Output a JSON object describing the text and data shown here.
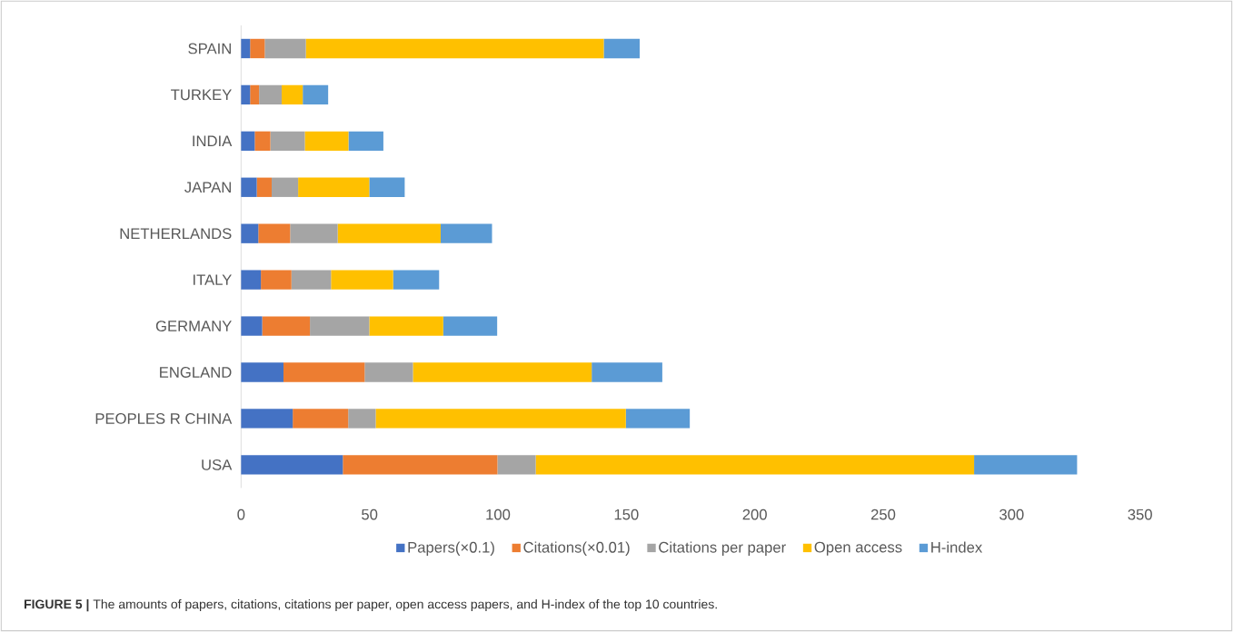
{
  "chart_data": {
    "type": "bar",
    "orientation": "horizontal",
    "stacked": true,
    "categories": [
      "SPAIN",
      "TURKEY",
      "INDIA",
      "JAPAN",
      "NETHERLANDS",
      "ITALY",
      "GERMANY",
      "ENGLAND",
      "PEOPLES R CHINA",
      "USA"
    ],
    "series": [
      {
        "name": "Papers(×0.1)",
        "color": "#4472c4",
        "values": [
          3.5,
          3.5,
          5.3,
          6.1,
          6.7,
          7.7,
          8.2,
          16.5,
          20.1,
          39.6
        ]
      },
      {
        "name": "Citations(×0.01)",
        "color": "#ed7d31",
        "values": [
          5.7,
          3.5,
          6.1,
          5.8,
          12.4,
          11.9,
          18.6,
          31.6,
          21.6,
          60.2
        ]
      },
      {
        "name": "Citations per paper",
        "color": "#a5a5a5",
        "values": [
          16,
          8.8,
          13.4,
          10.3,
          18.5,
          15.4,
          23.1,
          18.8,
          10.7,
          14.9
        ]
      },
      {
        "name": "Open access",
        "color": "#ffc000",
        "values": [
          116,
          8.2,
          17,
          27.7,
          40.1,
          24.2,
          28.8,
          69.6,
          97.4,
          170.7
        ]
      },
      {
        "name": "H-index",
        "color": "#5b9bd5",
        "values": [
          14,
          9.9,
          13.6,
          13.8,
          20,
          17.9,
          21,
          27.5,
          24.9,
          40.1
        ]
      }
    ],
    "xlim": [
      0,
      350
    ],
    "xticks": [
      0,
      50,
      100,
      150,
      200,
      250,
      300,
      350
    ],
    "grid": false,
    "legend": "bottom",
    "annotations": [
      "**FIGURE 5 |** The amounts of papers, citations, citations per paper, open access papers, and H-index of the top 10 countries."
    ]
  }
}
